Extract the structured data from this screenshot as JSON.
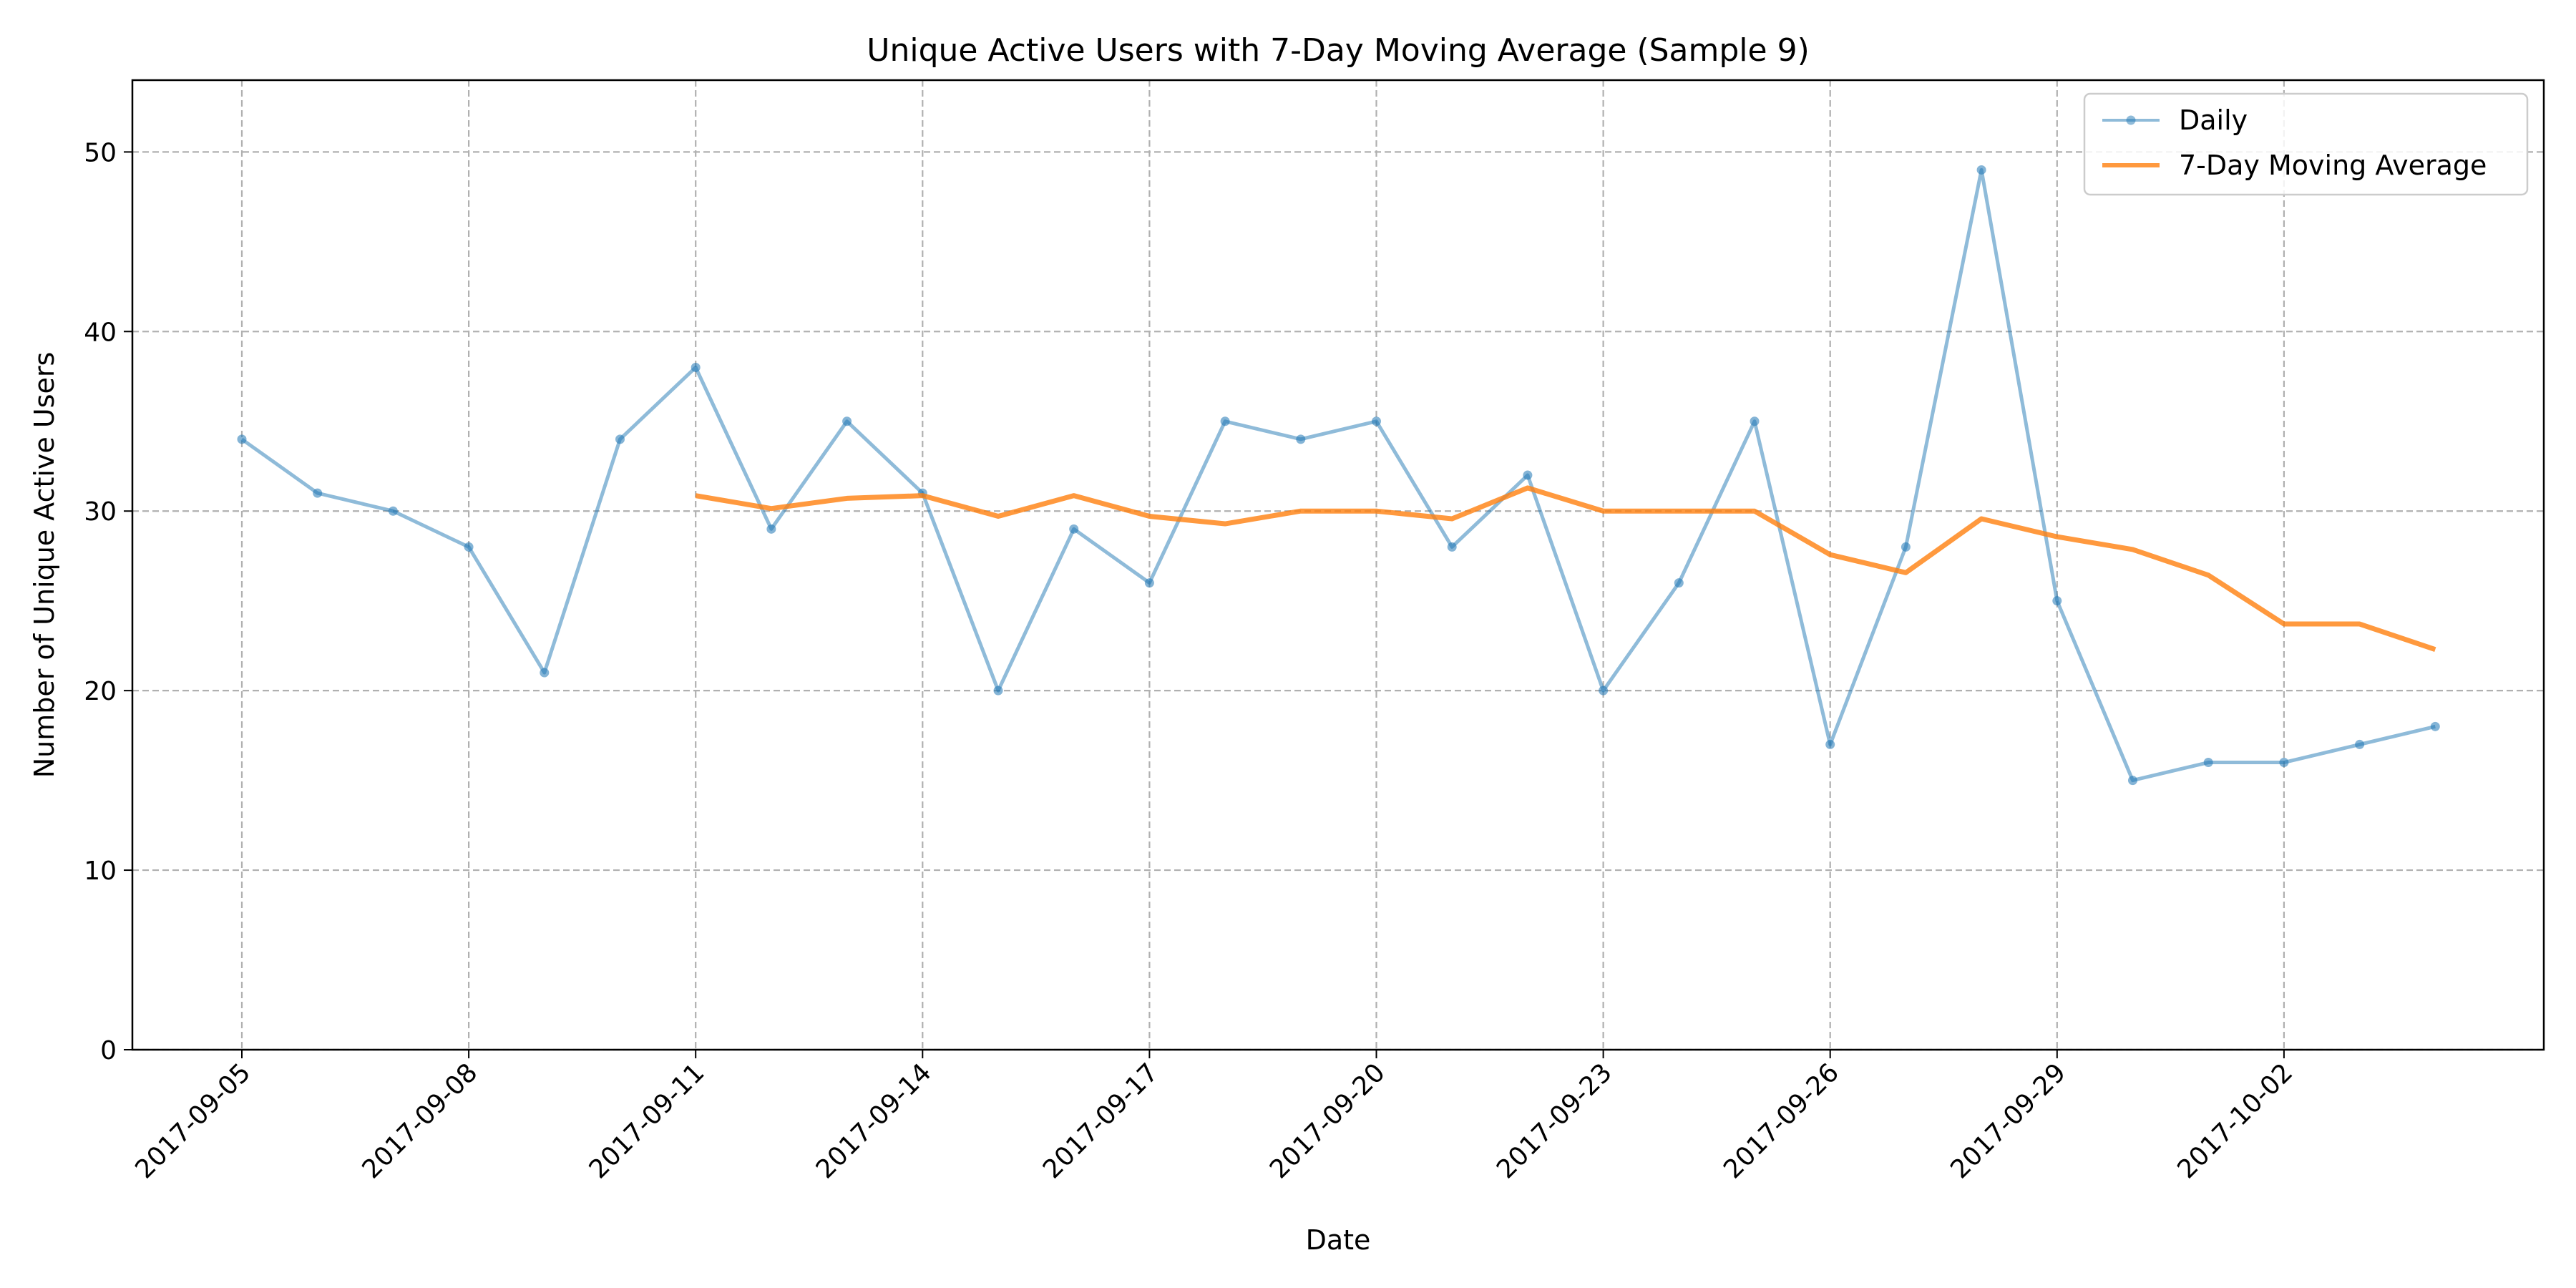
{
  "chart_data": {
    "type": "line",
    "title": "Unique Active Users with 7-Day Moving Average (Sample 9)",
    "xlabel": "Date",
    "ylabel": "Number of Unique Active Users",
    "ylim": [
      0,
      54
    ],
    "yticks": [
      0,
      10,
      20,
      30,
      40,
      50
    ],
    "grid": true,
    "legend_position": "upper-right",
    "x": [
      "2017-09-05",
      "2017-09-06",
      "2017-09-07",
      "2017-09-08",
      "2017-09-09",
      "2017-09-10",
      "2017-09-11",
      "2017-09-12",
      "2017-09-13",
      "2017-09-14",
      "2017-09-15",
      "2017-09-16",
      "2017-09-17",
      "2017-09-18",
      "2017-09-19",
      "2017-09-20",
      "2017-09-21",
      "2017-09-22",
      "2017-09-23",
      "2017-09-24",
      "2017-09-25",
      "2017-09-26",
      "2017-09-27",
      "2017-09-28",
      "2017-09-29",
      "2017-09-30",
      "2017-10-01",
      "2017-10-02",
      "2017-10-03",
      "2017-10-04"
    ],
    "xticks": [
      "2017-09-05",
      "2017-09-08",
      "2017-09-11",
      "2017-09-14",
      "2017-09-17",
      "2017-09-20",
      "2017-09-23",
      "2017-09-26",
      "2017-09-29",
      "2017-10-02"
    ],
    "series": [
      {
        "name": "Daily",
        "color": "#1f77b4",
        "values": [
          34,
          31,
          30,
          28,
          21,
          34,
          38,
          29,
          35,
          31,
          20,
          29,
          26,
          35,
          34,
          35,
          28,
          32,
          20,
          26,
          35,
          17,
          28,
          49,
          25,
          15,
          16,
          16,
          17,
          18
        ]
      },
      {
        "name": "7-Day Moving Average",
        "color": "#ff7f0e",
        "values": [
          null,
          null,
          null,
          null,
          null,
          null,
          30.86,
          30.14,
          30.71,
          30.86,
          29.71,
          30.86,
          29.71,
          29.29,
          30.0,
          30.0,
          29.57,
          31.29,
          30.0,
          30.0,
          30.0,
          27.57,
          26.57,
          29.57,
          28.57,
          27.86,
          26.43,
          23.71,
          23.71,
          22.29
        ]
      }
    ]
  }
}
